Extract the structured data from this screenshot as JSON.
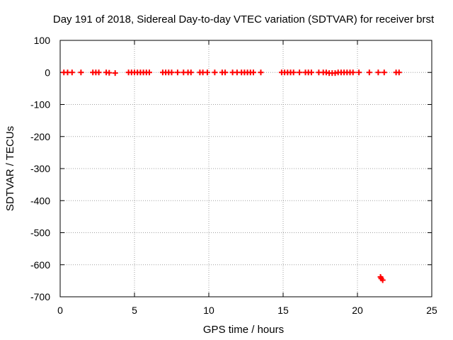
{
  "chart_data": {
    "type": "scatter",
    "title": "Day 191 of 2018, Sidereal Day-to-day VTEC variation (SDTVAR) for receiver brst",
    "xlabel": "GPS time / hours",
    "ylabel": "SDTVAR / TECUs",
    "xlim": [
      0,
      25
    ],
    "ylim": [
      -700,
      100
    ],
    "xticks": [
      "0",
      "5",
      "10",
      "15",
      "20",
      "25"
    ],
    "yticks": [
      "100",
      "0",
      "-100",
      "-200",
      "-300",
      "-400",
      "-500",
      "-600",
      "-700"
    ],
    "grid": true,
    "marker": "plus",
    "color": "#ff0000",
    "series": [
      {
        "x": [
          0.25,
          0.5,
          0.8,
          1.4,
          2.2,
          2.4,
          2.6,
          3.1,
          3.3,
          3.7,
          4.6,
          4.8,
          5.0,
          5.2,
          5.4,
          5.6,
          5.8,
          6.0,
          6.9,
          7.1,
          7.3,
          7.5,
          7.9,
          8.3,
          8.6,
          8.8,
          9.4,
          9.6,
          9.9,
          10.4,
          10.9,
          11.1,
          11.6,
          11.9,
          12.2,
          12.4,
          12.6,
          12.8,
          13.0,
          13.5,
          14.9,
          15.1,
          15.3,
          15.5,
          15.7,
          16.1,
          16.5,
          16.7,
          16.9,
          17.4,
          17.7,
          17.9,
          18.1,
          18.3,
          18.5,
          18.7,
          18.9,
          19.1,
          19.3,
          19.5,
          19.7,
          20.1,
          20.8,
          21.4,
          21.8,
          22.6,
          22.8,
          21.55,
          21.6,
          21.7
        ],
        "y": [
          0,
          0,
          0,
          0,
          0,
          0,
          0,
          0,
          -1,
          -2,
          0,
          0,
          0,
          0,
          0,
          0,
          0,
          0,
          0,
          0,
          0,
          0,
          0,
          0,
          0,
          0,
          0,
          0,
          0,
          0,
          0,
          0,
          0,
          0,
          0,
          0,
          0,
          0,
          0,
          0,
          0,
          0,
          0,
          0,
          0,
          0,
          0,
          0,
          0,
          0,
          0,
          0,
          -2,
          -2,
          -2,
          0,
          0,
          0,
          0,
          0,
          0,
          0,
          0,
          0,
          0,
          0,
          0,
          -638,
          -643,
          -648
        ]
      }
    ]
  }
}
